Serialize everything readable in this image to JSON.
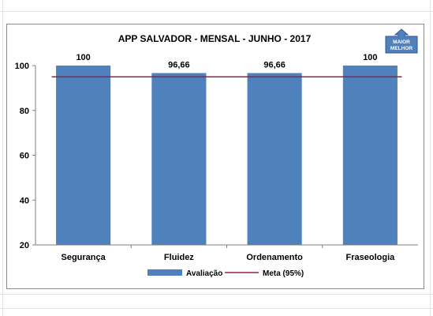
{
  "chart_data": {
    "type": "bar",
    "title": "APP SALVADOR - MENSAL - JUNHO - 2017",
    "categories": [
      "Segurança",
      "Fluidez",
      "Ordenamento",
      "Fraseologia"
    ],
    "series": [
      {
        "name": "Avaliação",
        "values": [
          100,
          96.66,
          96.66,
          100
        ],
        "color": "#4f81bd"
      }
    ],
    "data_labels": [
      "100",
      "96,66",
      "96,66",
      "100"
    ],
    "target_line": {
      "name": "Meta (95%)",
      "value": 95,
      "color": "#9b1b4b"
    },
    "yticks": [
      "20",
      "40",
      "60",
      "80",
      "100"
    ],
    "ylim": [
      20,
      100
    ],
    "grid": false,
    "legend": "bottom"
  },
  "badge": {
    "line1": "MAIOR",
    "line2": "MELHOR",
    "color": "#4f81bd",
    "icon": "up-arrow-icon"
  }
}
